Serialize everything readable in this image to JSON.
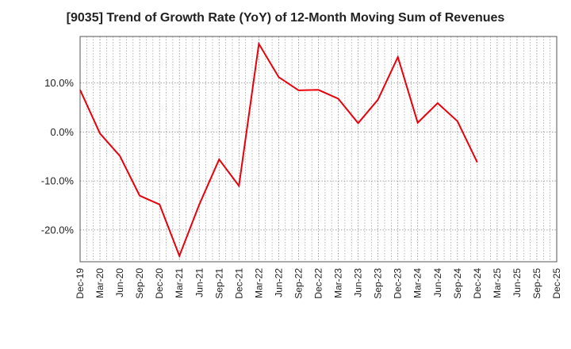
{
  "chart_data": {
    "type": "line",
    "title": "[9035]  Trend of Growth Rate (YoY) of 12-Month Moving Sum of Revenues",
    "xlabel": "",
    "ylabel": "",
    "ylim": [
      -26.5,
      19.5
    ],
    "y_ticks": [
      {
        "value": 10,
        "label": "10.0%"
      },
      {
        "value": 0,
        "label": "0.0%"
      },
      {
        "value": -10,
        "label": "-10.0%"
      },
      {
        "value": -20,
        "label": "-20.0%"
      }
    ],
    "x_tick_labels": [
      "Dec-19",
      "Mar-20",
      "Jun-20",
      "Sep-20",
      "Dec-20",
      "Mar-21",
      "Jun-21",
      "Sep-21",
      "Dec-21",
      "Mar-22",
      "Jun-22",
      "Sep-22",
      "Dec-22",
      "Mar-23",
      "Jun-23",
      "Sep-23",
      "Dec-23",
      "Mar-24",
      "Jun-24",
      "Sep-24",
      "Dec-24",
      "Mar-25",
      "Jun-25",
      "Sep-25",
      "Dec-25"
    ],
    "grid": true,
    "series": [
      {
        "color": "#e8000b",
        "x": [
          "Dec-19",
          "Mar-20",
          "Jun-20",
          "Sep-20",
          "Dec-20",
          "Mar-21",
          "Jun-21",
          "Sep-21",
          "Dec-21",
          "Mar-22",
          "Jun-22",
          "Sep-22",
          "Dec-22",
          "Mar-23",
          "Jun-23",
          "Sep-23",
          "Dec-23",
          "Mar-24",
          "Jun-24",
          "Sep-24",
          "Dec-24"
        ],
        "values": [
          8.6,
          -0.3,
          -4.9,
          -13.0,
          -14.8,
          -25.3,
          -14.8,
          -5.6,
          -11.0,
          18.0,
          11.2,
          8.5,
          8.6,
          6.8,
          1.8,
          6.6,
          15.3,
          1.9,
          5.9,
          2.2,
          -6.2
        ]
      }
    ]
  }
}
